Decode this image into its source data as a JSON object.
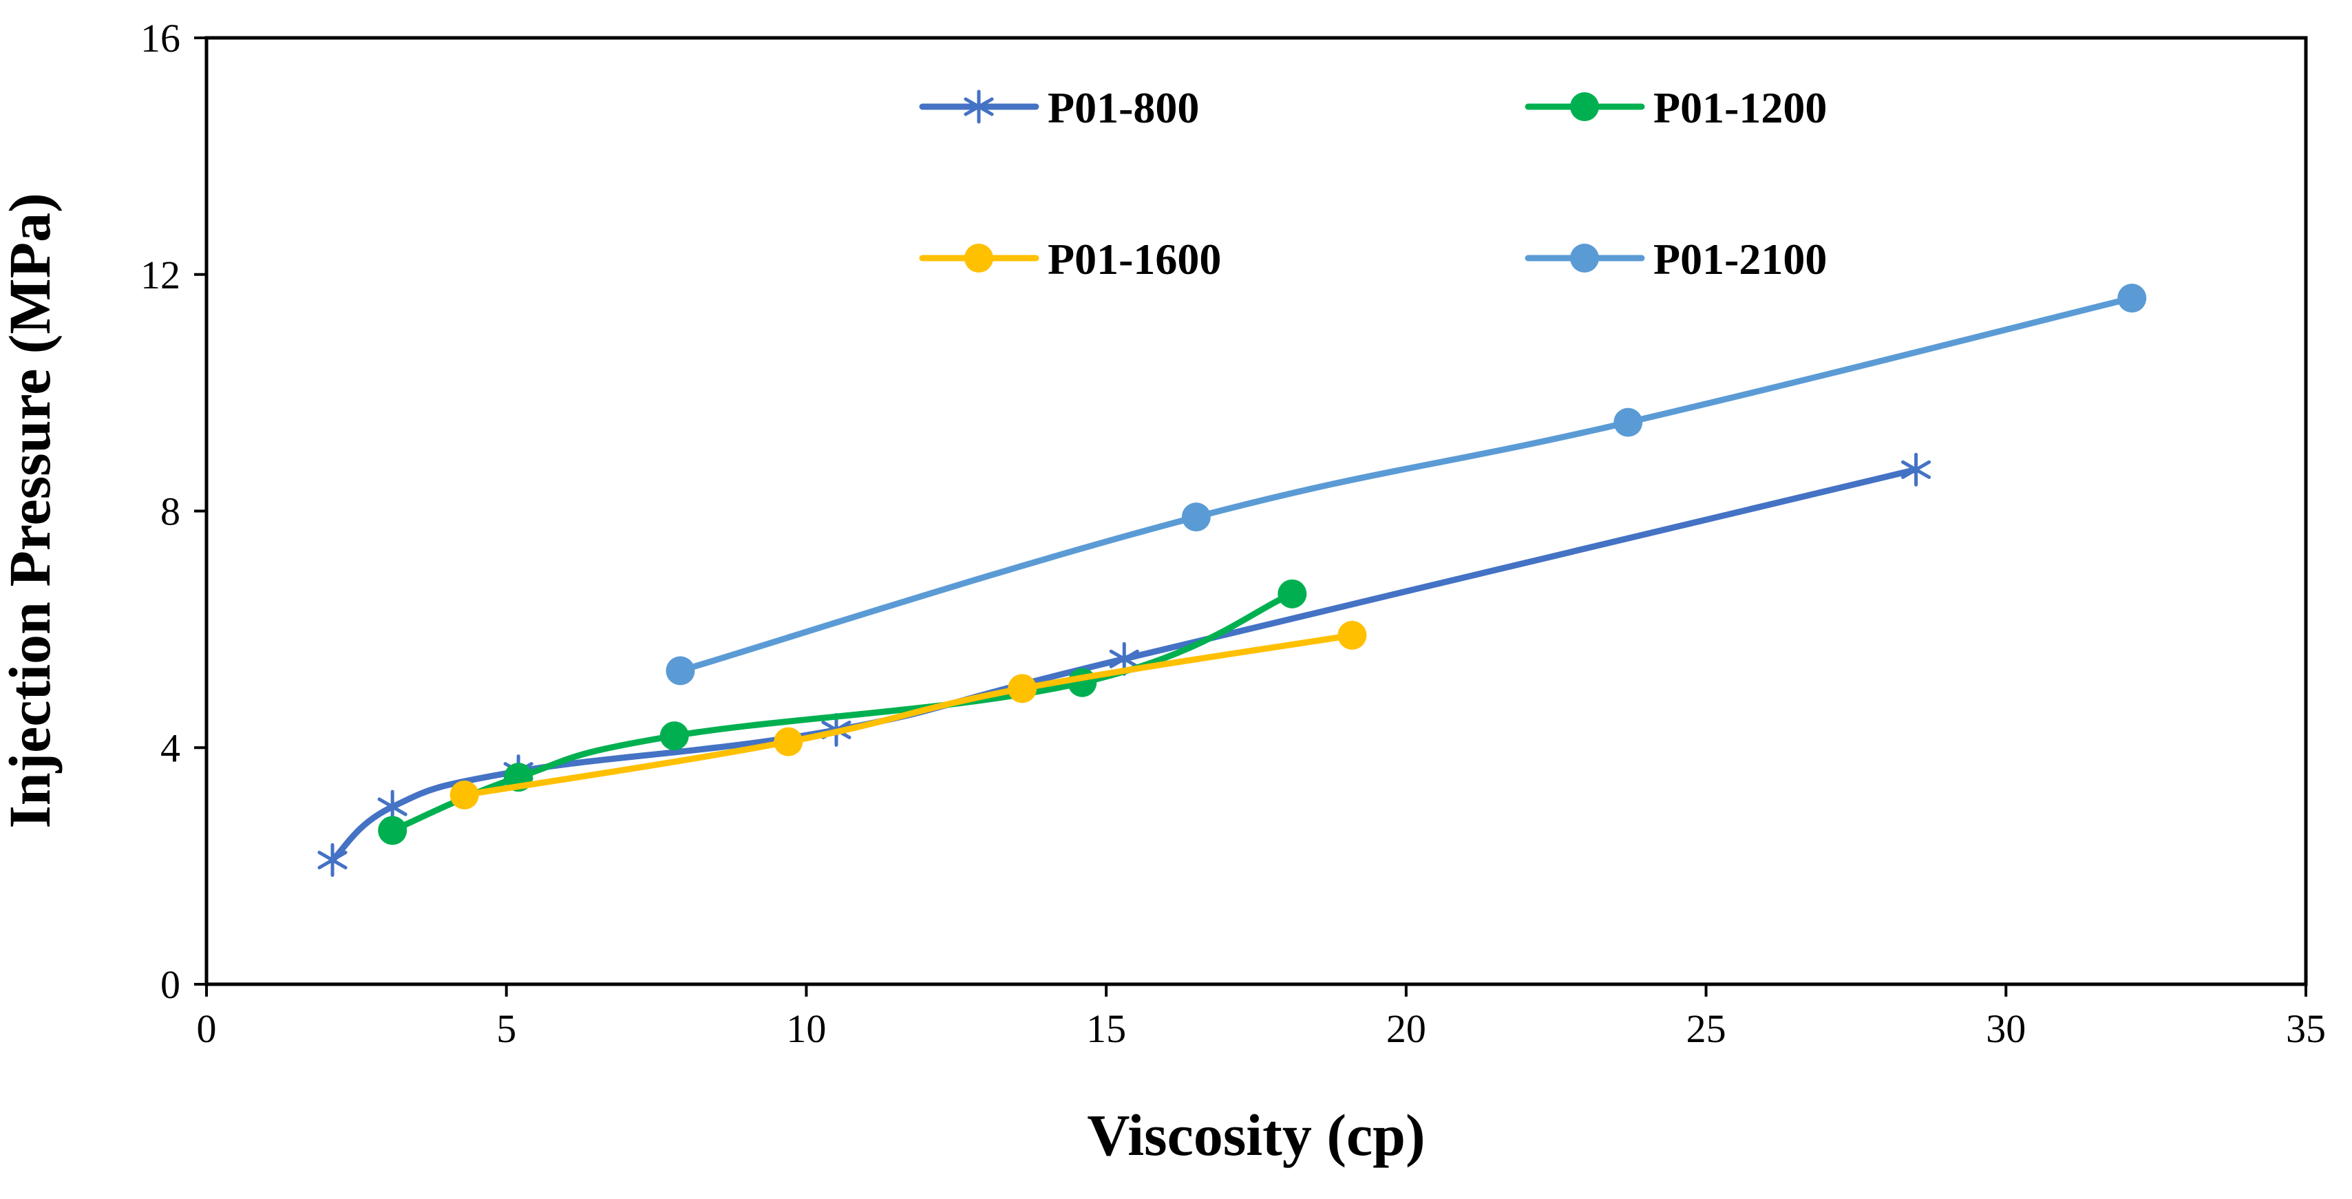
{
  "chart_data": {
    "type": "line",
    "title": "",
    "xlabel": "Viscosity (cp)",
    "ylabel": "Injection Pressure (MPa)",
    "xlim": [
      0,
      35
    ],
    "ylim": [
      0,
      16
    ],
    "xticks": [
      0,
      5,
      10,
      15,
      20,
      25,
      30,
      35
    ],
    "yticks": [
      0,
      4,
      8,
      12,
      16
    ],
    "grid": false,
    "legend_position": "top",
    "series": [
      {
        "name": "P01-800",
        "color": "#4472C4",
        "marker": "asterisk",
        "x": [
          2.1,
          3.1,
          5.2,
          10.5,
          15.3,
          28.5
        ],
        "y": [
          2.1,
          3.0,
          3.6,
          4.3,
          5.5,
          8.7
        ]
      },
      {
        "name": "P01-1200",
        "color": "#00B050",
        "marker": "circle",
        "x": [
          3.1,
          5.2,
          7.8,
          14.6,
          18.1
        ],
        "y": [
          2.6,
          3.5,
          4.2,
          5.1,
          6.6
        ]
      },
      {
        "name": "P01-1600",
        "color": "#FFC000",
        "marker": "circle",
        "x": [
          4.3,
          9.7,
          13.6,
          19.1
        ],
        "y": [
          3.2,
          4.1,
          5.0,
          5.9
        ]
      },
      {
        "name": "P01-2100",
        "color": "#5B9BD5",
        "marker": "circle",
        "x": [
          7.9,
          16.5,
          23.7,
          32.1
        ],
        "y": [
          5.3,
          7.9,
          9.5,
          11.6
        ]
      }
    ]
  }
}
